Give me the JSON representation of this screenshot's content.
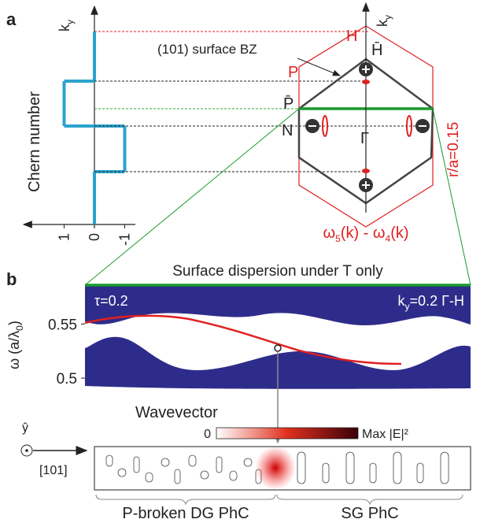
{
  "panel_a": {
    "label": "a",
    "y_axis_label": "Chern number",
    "ky_main": "k",
    "ky_sub": "y",
    "chern_ticks": [
      1,
      0,
      -1
    ],
    "chern_steps": [
      0,
      1,
      -1,
      0
    ],
    "bz_label": "(101) surface BZ",
    "point_H": "H",
    "point_H_bar": "H̄",
    "point_P": "P",
    "point_P_bar": "P̄",
    "point_N": "N",
    "point_Gamma": "Γ",
    "ratio": "r/a=0.15",
    "formula": [
      "ω",
      "5",
      "(k) - ω",
      "4",
      "(k)"
    ]
  },
  "panel_b": {
    "label": "b",
    "title": "Surface dispersion under T only",
    "tau": "τ=0.2",
    "ky_main": "k",
    "ky_sub": "y",
    "ky_rest": "=0.2 Γ-H",
    "y_axis_label": [
      "ω (a/λ",
      "0",
      ")"
    ],
    "ylim": [
      0.476,
      0.586
    ],
    "yticks": [
      0.55,
      0.5
    ],
    "x_axis_label": "Wavevector",
    "colorbar_min": "0",
    "colorbar_max": "Max |E|²",
    "axis_y_hat": "ŷ",
    "axis_direction": "[101]",
    "region_left": "P-broken DG PhC",
    "region_right": "SG PhC"
  }
}
